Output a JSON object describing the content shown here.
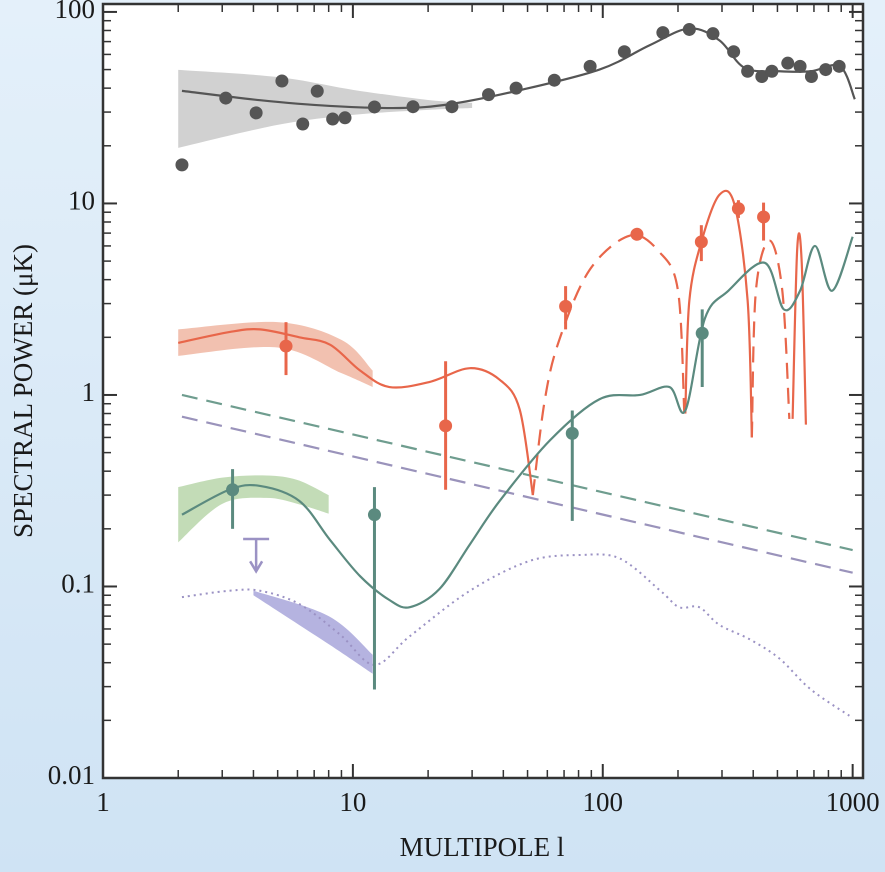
{
  "chart_data": {
    "type": "line",
    "x_label": "MULTIPOLE l",
    "y_label": "SPECTRAL POWER (μK)",
    "xscale": "log",
    "yscale": "log",
    "xlim": [
      1,
      1100
    ],
    "ylim": [
      0.01,
      110
    ],
    "xticks": [
      1,
      10,
      100,
      1000
    ],
    "yticks": [
      0.01,
      0.1,
      1,
      10,
      100
    ],
    "xminorticks": [
      2,
      3,
      4,
      5,
      6,
      7,
      8,
      9,
      20,
      30,
      40,
      50,
      60,
      70,
      80,
      90,
      200,
      300,
      400,
      500,
      600,
      700,
      800,
      900
    ],
    "yminorticks": [
      0.02,
      0.03,
      0.04,
      0.05,
      0.06,
      0.07,
      0.08,
      0.09,
      0.2,
      0.3,
      0.4,
      0.5,
      0.6,
      0.7,
      0.8,
      0.9,
      2,
      3,
      4,
      5,
      6,
      7,
      8,
      9,
      20,
      30,
      40,
      50,
      60,
      70,
      80,
      90
    ],
    "series": [
      {
        "kind": "band",
        "color": "#c9c9c9",
        "x": [
          2,
          5,
          10,
          20,
          30
        ],
        "lower": [
          19.5,
          25.7,
          29,
          30.8,
          31.5
        ],
        "upper": [
          49.8,
          45.7,
          39.2,
          34.7,
          33.5
        ]
      },
      {
        "kind": "band",
        "color": "#f0b6a2",
        "x": [
          2,
          5,
          9,
          12
        ],
        "lower": [
          1.6,
          1.77,
          1.3,
          1.1
        ],
        "upper": [
          2.2,
          2.4,
          1.94,
          1.34
        ]
      },
      {
        "kind": "band",
        "color": "#b9d6aa",
        "x": [
          2,
          3,
          4.5,
          6,
          8
        ],
        "lower": [
          0.17,
          0.27,
          0.29,
          0.27,
          0.24
        ],
        "upper": [
          0.33,
          0.37,
          0.38,
          0.36,
          0.3
        ]
      },
      {
        "kind": "band",
        "color": "#a8a6da",
        "x": [
          4,
          8,
          12
        ],
        "lower": [
          0.09,
          0.05,
          0.035
        ],
        "upper": [
          0.095,
          0.07,
          0.044
        ]
      },
      {
        "kind": "line",
        "style": "dashed",
        "color": "#6f9d8f",
        "x": [
          2.07,
          1000
        ],
        "values": [
          1.0,
          0.155
        ]
      },
      {
        "kind": "line",
        "style": "dashed",
        "color": "#9a93bb",
        "x": [
          2.07,
          1000
        ],
        "values": [
          0.77,
          0.118
        ]
      },
      {
        "kind": "line",
        "style": "solid",
        "color": "#555555",
        "x": [
          2.07,
          4.25,
          8.1,
          15.4,
          24.5,
          46.5,
          97,
          154,
          222,
          293,
          370,
          510,
          680,
          890,
          1020
        ],
        "values": [
          38.7,
          34.6,
          32.3,
          31.5,
          33,
          39,
          50,
          67,
          82,
          71,
          51,
          49,
          49,
          52,
          35
        ]
      },
      {
        "kind": "line",
        "style": "solid",
        "color": "#e8664a",
        "x": [
          2,
          3.2,
          4.25,
          6.1,
          8.1,
          10.7,
          14,
          20.3,
          29.4,
          38.7,
          46.5,
          52.5,
          100,
          214,
          222,
          249,
          293,
          337,
          380,
          395,
          500,
          575,
          600,
          625,
          650
        ],
        "values": [
          1.87,
          2.13,
          2.2,
          2.0,
          1.83,
          1.34,
          1.1,
          1.17,
          1.38,
          1.2,
          0.84,
          0.3,
          null,
          0.8,
          3.1,
          6.4,
          11.1,
          9.8,
          3.1,
          0.6,
          null,
          0.75,
          5.8,
          5.0,
          0.7
        ]
      },
      {
        "kind": "line",
        "style": "dashed",
        "color": "#e8664a",
        "x": [
          52.5,
          58.6,
          67,
          88.6,
          128.6,
          168,
          200,
          212,
          300,
          395,
          410,
          465,
          523,
          558
        ],
        "values": [
          0.3,
          0.94,
          1.94,
          4.5,
          6.8,
          5.6,
          3.5,
          0.8,
          null,
          0.6,
          3.5,
          6.4,
          3.5,
          0.75
        ]
      },
      {
        "kind": "line",
        "style": "solid",
        "color": "#5b8a7f",
        "x": [
          2.07,
          3.2,
          4.25,
          6.1,
          8.1,
          10.7,
          14,
          16.9,
          22.2,
          29.4,
          38.7,
          61.5,
          97,
          141,
          185,
          214,
          256,
          318,
          445,
          530,
          616,
          707,
          827,
          1000
        ],
        "values": [
          0.237,
          0.32,
          0.335,
          0.28,
          0.175,
          0.113,
          0.085,
          0.078,
          0.097,
          0.166,
          0.28,
          0.58,
          0.95,
          1.0,
          1.1,
          0.83,
          2.5,
          3.5,
          4.9,
          2.8,
          3.5,
          6.0,
          3.5,
          6.7
        ]
      },
      {
        "kind": "line",
        "style": "dotted",
        "color": "#9b92c4",
        "x": [
          2.07,
          3.2,
          4.25,
          6.1,
          8.9,
          12.2,
          16.9,
          29.4,
          51,
          81,
          117,
          170,
          202,
          243,
          293,
          387,
          510,
          680,
          1000
        ],
        "values": [
          0.088,
          0.095,
          0.095,
          0.081,
          0.056,
          0.039,
          0.055,
          0.095,
          0.136,
          0.146,
          0.14,
          0.095,
          0.078,
          0.078,
          0.063,
          0.053,
          0.042,
          0.029,
          0.0206
        ]
      },
      {
        "kind": "points",
        "color": "#555555",
        "x": [
          2.07,
          3.1,
          4.1,
          5.2,
          6.3,
          7.2,
          8.3,
          9.3,
          12.2,
          17.4,
          24.9,
          34.9,
          45,
          64,
          89,
          122,
          174,
          222,
          276,
          334,
          380,
          433,
          475,
          550,
          616,
          684,
          780,
          883
        ],
        "values": [
          15.9,
          35.5,
          29.7,
          43.6,
          26,
          38.6,
          27.6,
          28,
          31.9,
          32,
          32,
          37,
          40,
          44,
          52,
          62,
          78,
          81,
          77,
          62,
          49,
          46,
          49,
          54,
          52,
          46,
          50,
          52
        ]
      },
      {
        "kind": "points",
        "color": "#e8664a",
        "x": [
          5.4,
          23.5,
          71,
          137,
          248,
          349,
          440
        ],
        "values": [
          1.8,
          0.69,
          2.9,
          6.9,
          6.3,
          9.4,
          8.5
        ],
        "err_low": [
          1.27,
          0.32,
          2.2,
          6.9,
          5.0,
          8.4,
          6.4
        ],
        "err_high": [
          2.4,
          1.5,
          3.7,
          6.9,
          7.7,
          10.4,
          10.1
        ]
      },
      {
        "kind": "points",
        "color": "#5b8a7f",
        "x": [
          3.3,
          12.2,
          75.5,
          250
        ],
        "values": [
          0.32,
          0.237,
          0.63,
          2.1
        ],
        "err_low": [
          0.2,
          0.029,
          0.22,
          1.1
        ],
        "err_high": [
          0.41,
          0.33,
          0.83,
          2.8
        ]
      },
      {
        "kind": "limit",
        "color": "#9b92c4",
        "x": [
          4.1
        ],
        "values": [
          0.177
        ],
        "err_low": [
          0.12
        ]
      }
    ]
  }
}
